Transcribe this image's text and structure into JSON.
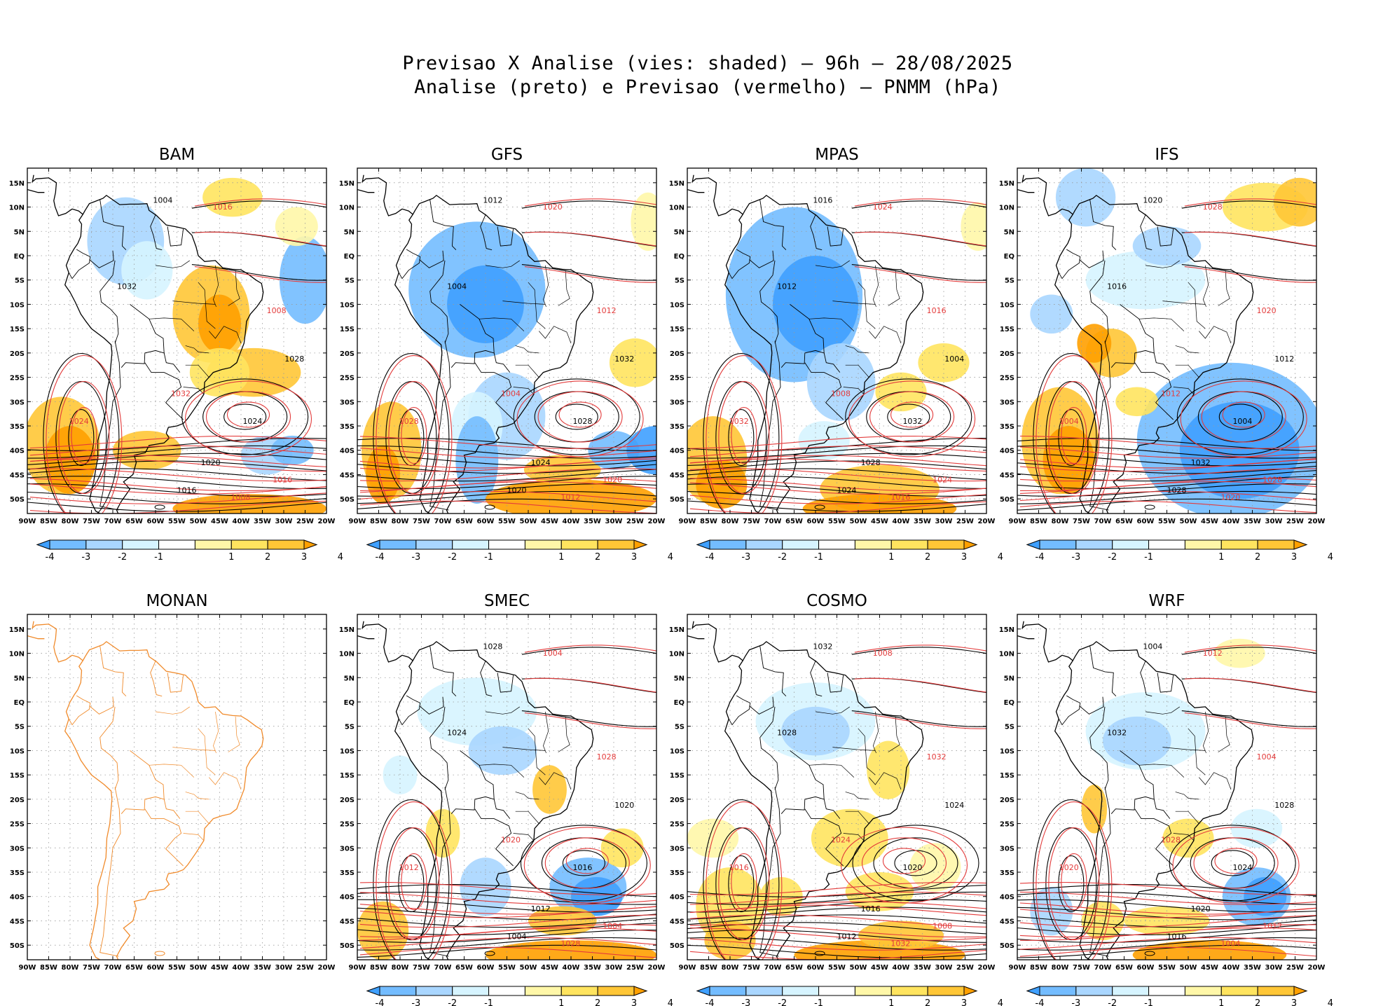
{
  "header": {
    "line1": "Previsao X Analise (vies: shaded) – 96h – 28/08/2025",
    "line2": "Analise (preto) e Previsao (vermelho) – PNMM (hPa)"
  },
  "axes": {
    "lat_labels": [
      "15N",
      "10N",
      "5N",
      "EQ",
      "5S",
      "10S",
      "15S",
      "20S",
      "25S",
      "30S",
      "35S",
      "40S",
      "45S",
      "50S"
    ],
    "lon_labels": [
      "90W",
      "85W",
      "80W",
      "75W",
      "70W",
      "65W",
      "60W",
      "55W",
      "50W",
      "45W",
      "40W",
      "35W",
      "30W",
      "25W",
      "20W"
    ]
  },
  "colorbar": {
    "labels": [
      "-4",
      "-3",
      "-2",
      "-1",
      "1",
      "2",
      "3",
      "4"
    ],
    "colors": [
      "#3fa0ff",
      "#73bcff",
      "#a9d6ff",
      "#d6f4ff",
      "#ffffff",
      "#fff7a8",
      "#ffe45f",
      "#ffc636",
      "#ffa000"
    ]
  },
  "colors": {
    "analysis_contour": "#000000",
    "forecast_contour": "#e33b3b",
    "coastline_monan": "#f08a2a",
    "grid": "#9a9a9a"
  },
  "panels": [
    {
      "name": "BAM",
      "has_data": true
    },
    {
      "name": "GFS",
      "has_data": true
    },
    {
      "name": "MPAS",
      "has_data": true
    },
    {
      "name": "IFS",
      "has_data": true
    },
    {
      "name": "MONAN",
      "has_data": false
    },
    {
      "name": "SMEC",
      "has_data": true
    },
    {
      "name": "COSMO",
      "has_data": true
    },
    {
      "name": "WRF",
      "has_data": true
    }
  ],
  "isobars": {
    "analysis": [
      "1004",
      "1012",
      "1016",
      "1020",
      "1024",
      "1028",
      "1032"
    ],
    "forecast": [
      "1004",
      "1008",
      "1012",
      "1016",
      "1020",
      "1024",
      "1028",
      "1032"
    ]
  }
}
